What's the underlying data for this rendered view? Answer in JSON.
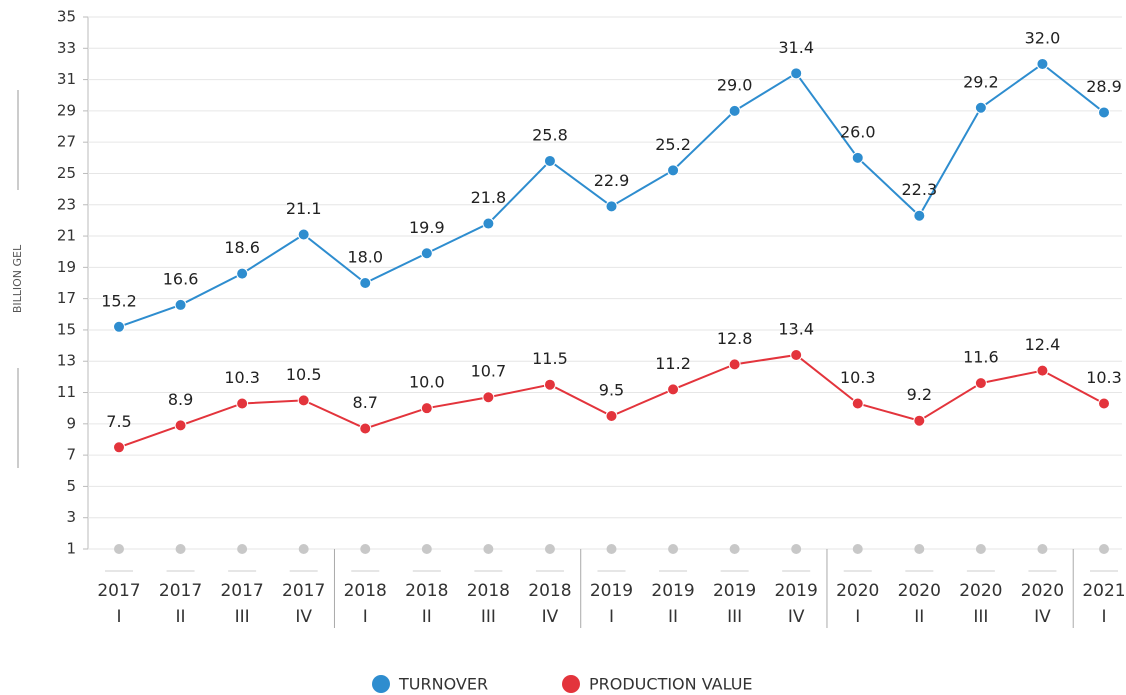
{
  "chart_data": {
    "type": "line",
    "y_label": "BILLION GEL",
    "categories": [
      [
        "2017",
        "I"
      ],
      [
        "2017",
        "II"
      ],
      [
        "2017",
        "III"
      ],
      [
        "2017",
        "IV"
      ],
      [
        "2018",
        "I"
      ],
      [
        "2018",
        "II"
      ],
      [
        "2018",
        "III"
      ],
      [
        "2018",
        "IV"
      ],
      [
        "2019",
        "I"
      ],
      [
        "2019",
        "II"
      ],
      [
        "2019",
        "III"
      ],
      [
        "2019",
        "IV"
      ],
      [
        "2020",
        "I"
      ],
      [
        "2020",
        "II"
      ],
      [
        "2020",
        "III"
      ],
      [
        "2020",
        "IV"
      ],
      [
        "2021",
        "I"
      ]
    ],
    "series": [
      {
        "name": "TURNOVER",
        "color": "#2e8dcf",
        "values": [
          15.2,
          16.6,
          18.6,
          21.1,
          18.0,
          19.9,
          21.8,
          25.8,
          22.9,
          25.2,
          29.0,
          31.4,
          26.0,
          22.3,
          29.2,
          32.0,
          28.9
        ],
        "value_labels": [
          "15.2",
          "16.6",
          "18.6",
          "21.1",
          "18.0",
          "19.9",
          "21.8",
          "25.8",
          "22.9",
          "25.2",
          "29.0",
          "31.4",
          "26.0",
          "22.3",
          "29.2",
          "32.0",
          "28.9"
        ]
      },
      {
        "name": "PRODUCTION VALUE",
        "color": "#e3343c",
        "values": [
          7.5,
          8.9,
          10.3,
          10.5,
          8.7,
          10.0,
          10.7,
          11.5,
          9.5,
          11.2,
          12.8,
          13.4,
          10.3,
          9.2,
          11.6,
          12.4,
          10.3
        ],
        "value_labels": [
          "7.5",
          "8.9",
          "10.3",
          "10.5",
          "8.7",
          "10.0",
          "10.7",
          "11.5",
          "9.5",
          "11.2",
          "12.8",
          "13.4",
          "10.3",
          "9.2",
          "11.6",
          "12.4",
          "10.3"
        ]
      }
    ],
    "ylim": [
      1,
      35
    ],
    "yticks": [
      1,
      3,
      5,
      7,
      9,
      11,
      13,
      15,
      17,
      19,
      21,
      23,
      25,
      27,
      29,
      31,
      33,
      35
    ],
    "grid": true,
    "legend": "bottom"
  }
}
